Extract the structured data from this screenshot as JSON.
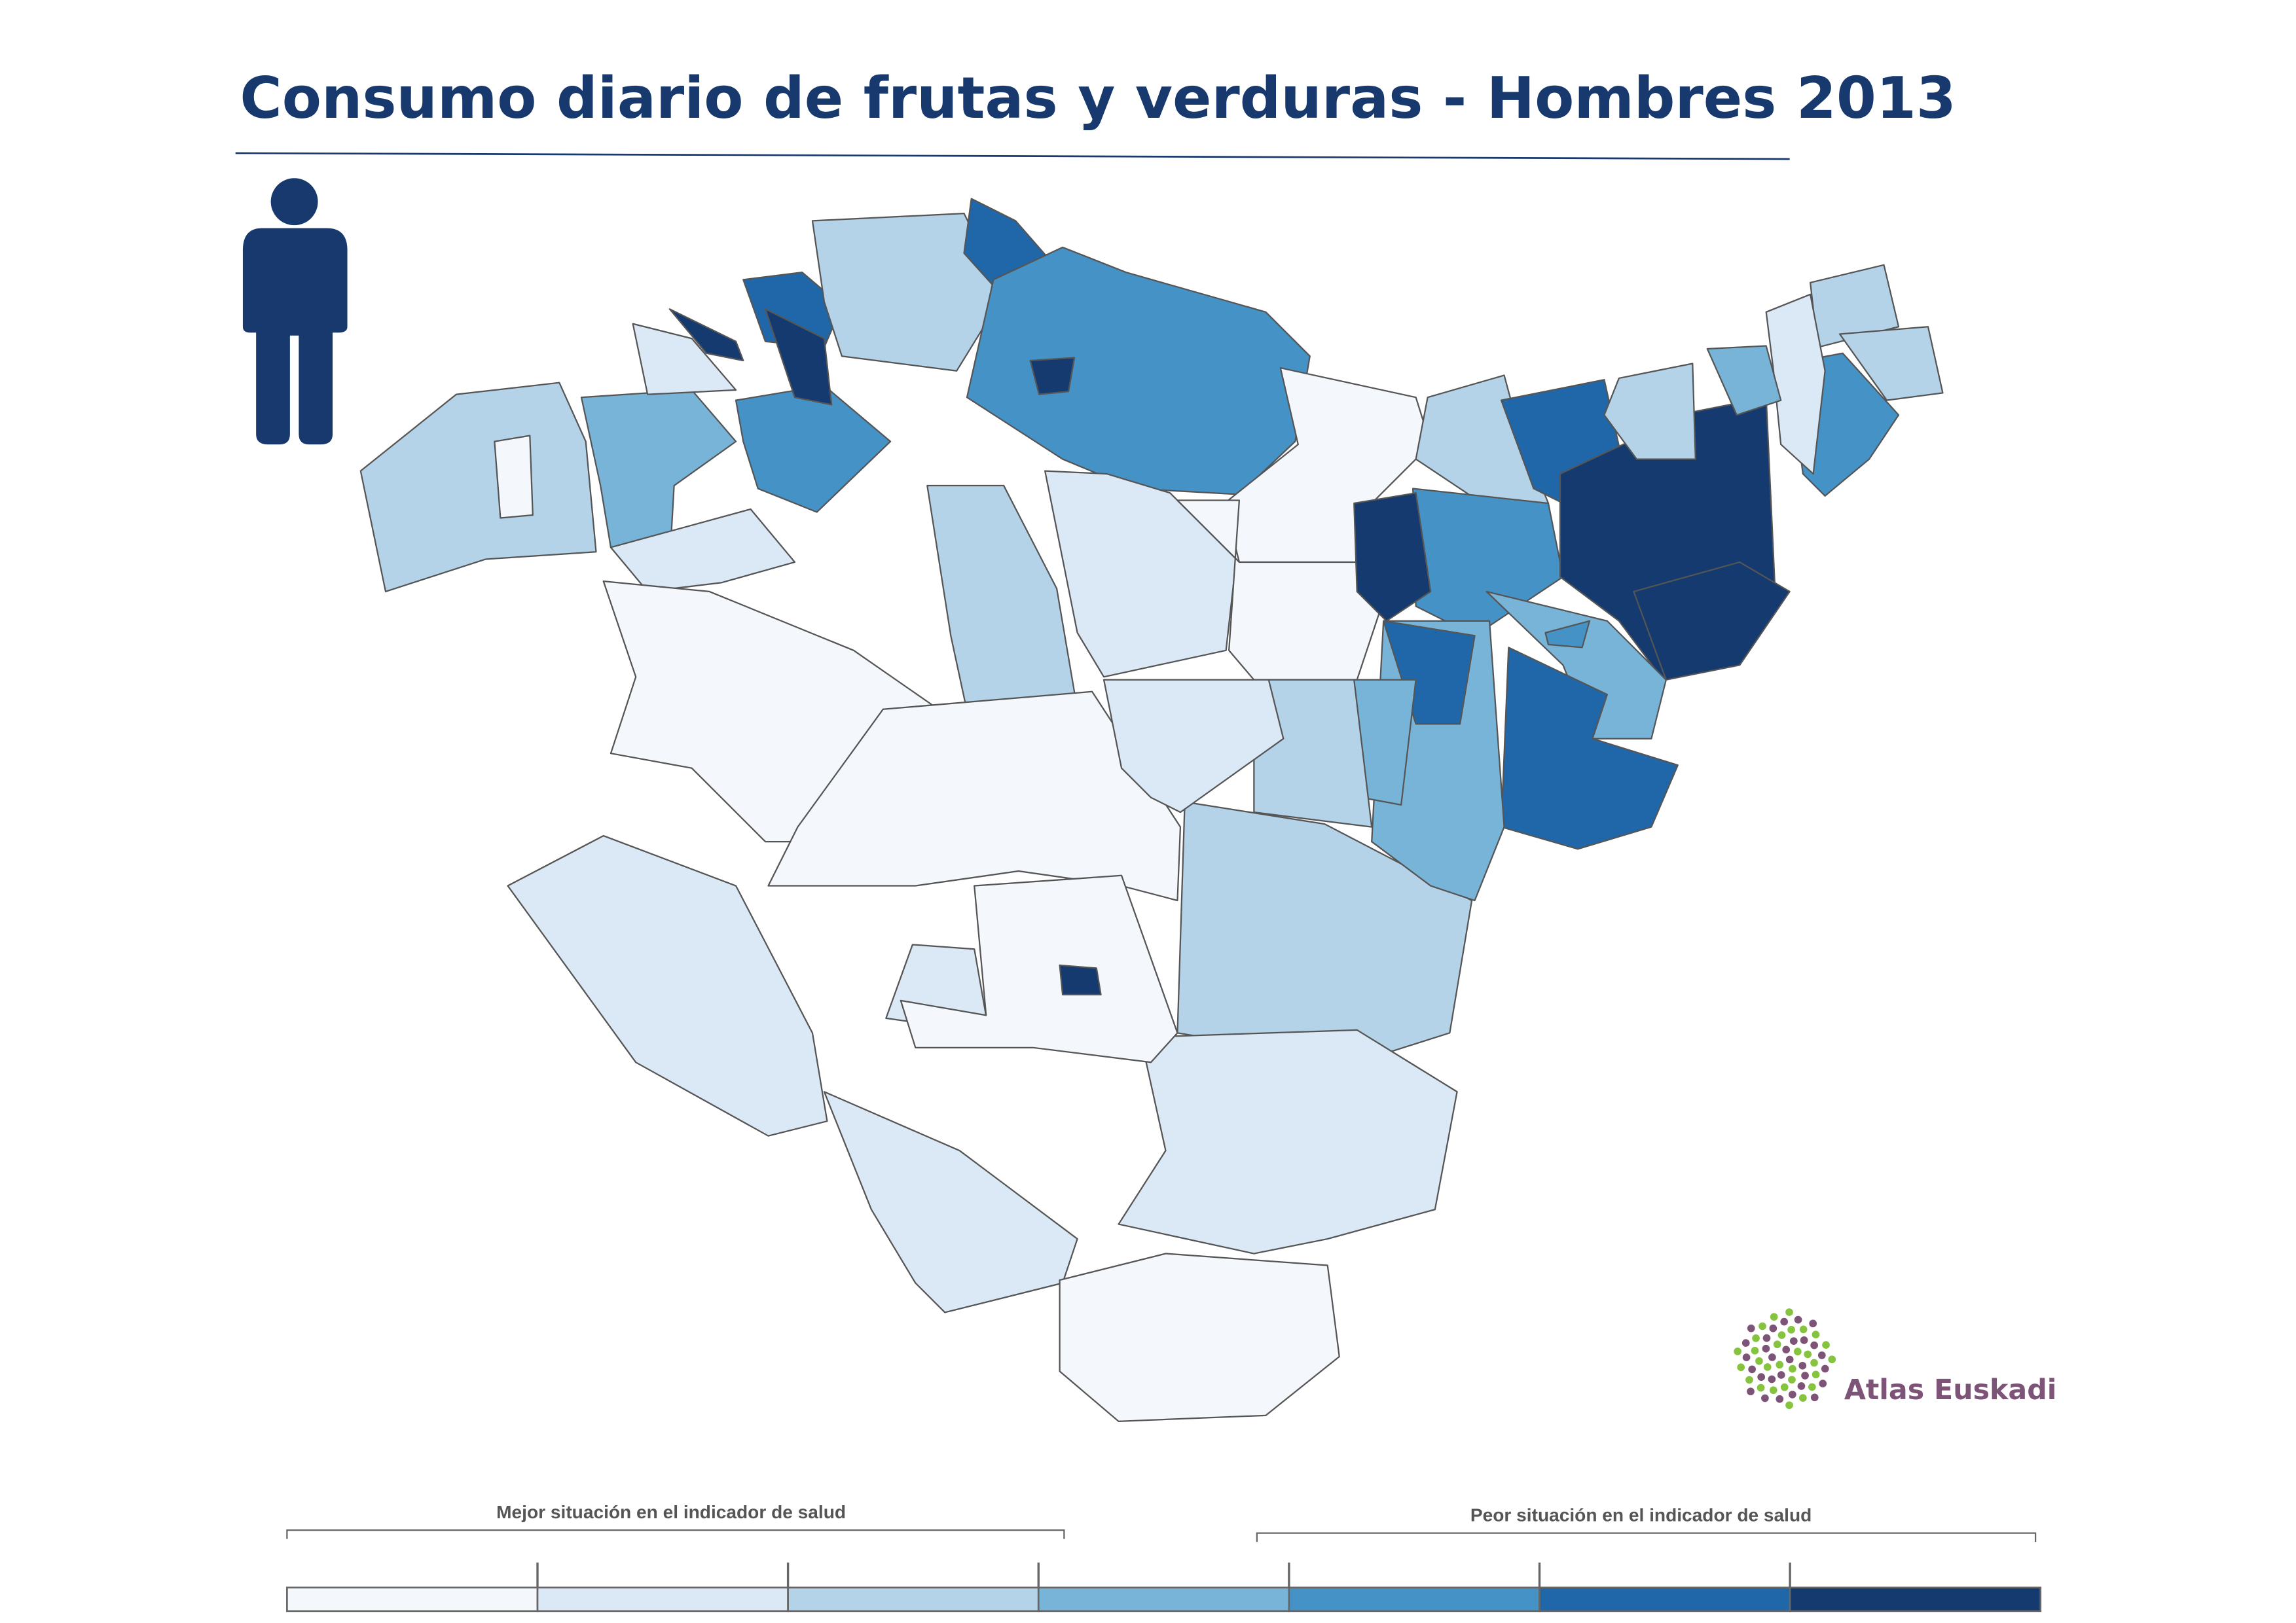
{
  "title": "Consumo diario de frutas y verduras - Hombres 2013",
  "icon": "male-person-icon",
  "logo": {
    "text": "Atlas Euskadi",
    "colors": {
      "purple": "#7d5477",
      "green": "#86c440"
    }
  },
  "legend": {
    "better_label": "Mejor situación en el indicador de salud",
    "worse_label": "Peor situación en el indicador de salud",
    "classes": [
      "#f4f8fd",
      "#dbe8f5",
      "#b4d3e8",
      "#78b4d8",
      "#4592c6",
      "#1f67a9",
      "#143a70"
    ]
  },
  "map": {
    "region_levels": [
      2,
      0,
      3,
      4,
      1,
      5,
      2,
      5,
      4,
      6,
      6,
      6,
      1,
      2,
      1,
      0,
      0,
      2,
      1,
      1,
      1,
      0,
      1,
      0,
      6,
      0,
      0,
      2,
      5,
      4,
      6,
      6,
      3,
      5,
      3,
      5,
      3,
      2,
      1,
      2,
      2,
      4,
      1,
      2,
      3,
      6,
      4
    ]
  }
}
